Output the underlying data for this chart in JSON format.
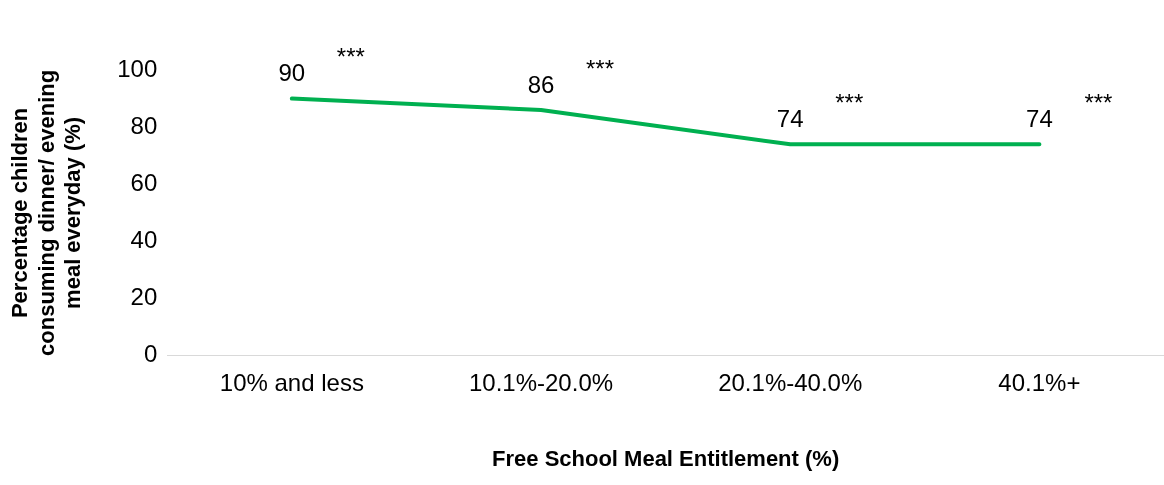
{
  "chart_data": {
    "type": "line",
    "xlabel": "Free School Meal Entitlement (%)",
    "ylabel": "Percentage children consuming dinner/ evening meal everyday (%)",
    "categories": [
      "10% and less",
      "10.1%-20.0%",
      "20.1%-40.0%",
      "40.1%+"
    ],
    "series": [
      {
        "color": "#00b050",
        "values": [
          90,
          86,
          74,
          74
        ]
      }
    ],
    "ylim": [
      0,
      100
    ],
    "yticks": [
      0,
      20,
      40,
      60,
      80,
      100
    ],
    "grid": false,
    "legend": false,
    "marker": "none",
    "line_style": "solid",
    "data_labels": true,
    "annotations": [
      {
        "text": "***",
        "x": "10% and less",
        "y": 90
      },
      {
        "text": "***",
        "x": "10.1%-20.0%",
        "y": 86
      },
      {
        "text": "***",
        "x": "20.1%-40.0%",
        "y": 74
      },
      {
        "text": "***",
        "x": "40.1%+",
        "y": 74
      }
    ]
  }
}
